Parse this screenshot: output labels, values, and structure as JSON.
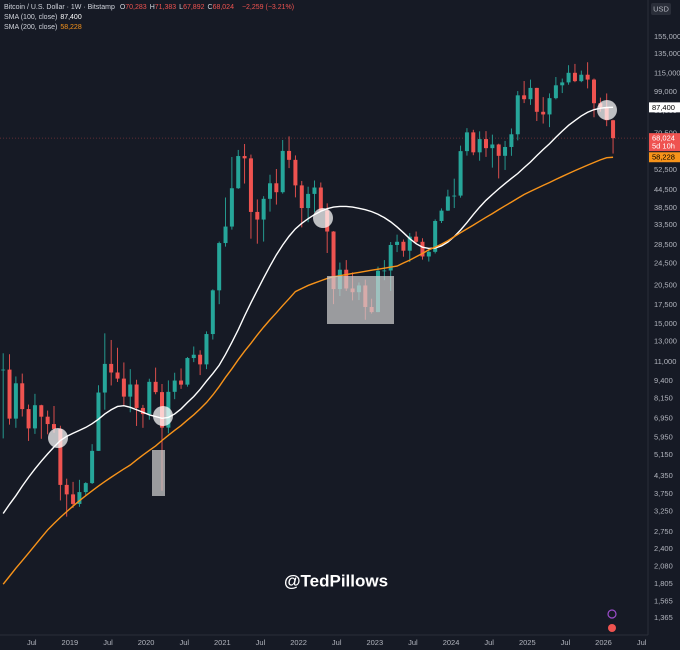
{
  "chart_data": {
    "type": "candlestick",
    "title": "Bitcoin / U.S. Dollar · 1W · Bitstamp",
    "ohlc_header": [
      {
        "key": "O",
        "value": "70,283"
      },
      {
        "key": "H",
        "value": "71,383"
      },
      {
        "key": "L",
        "value": "67,892"
      },
      {
        "key": "C",
        "value": "68,024"
      }
    ],
    "change": "−2,259 (−3.21%)",
    "countdown": "5d 10h",
    "currency": "USD",
    "watermark": "@TedPillows",
    "up_color": "#26a69a",
    "down_color": "#ef5350",
    "log_scale": true,
    "grid": false,
    "x": [
      "2018-02",
      "2018-03",
      "2018-04",
      "2018-05",
      "2018-06",
      "2018-07",
      "2018-08",
      "2018-09",
      "2018-10",
      "2018-11",
      "2018-12",
      "2019-01",
      "2019-02",
      "2019-03",
      "2019-04",
      "2019-05",
      "2019-06",
      "2019-07",
      "2019-08",
      "2019-09",
      "2019-10",
      "2019-11",
      "2019-12",
      "2020-01",
      "2020-02",
      "2020-03",
      "2020-04",
      "2020-05",
      "2020-06",
      "2020-07",
      "2020-08",
      "2020-09",
      "2020-10",
      "2020-11",
      "2020-12",
      "2021-01",
      "2021-02",
      "2021-03",
      "2021-04",
      "2021-05",
      "2021-06",
      "2021-07",
      "2021-08",
      "2021-09",
      "2021-10",
      "2021-11",
      "2021-12",
      "2022-01",
      "2022-02",
      "2022-03",
      "2022-04",
      "2022-05",
      "2022-06",
      "2022-07",
      "2022-08",
      "2022-09",
      "2022-10",
      "2022-11",
      "2022-12",
      "2023-01",
      "2023-02",
      "2023-03",
      "2023-04",
      "2023-05",
      "2023-06",
      "2023-07",
      "2023-08",
      "2023-09",
      "2023-10",
      "2023-11",
      "2023-12",
      "2024-01",
      "2024-02",
      "2024-03",
      "2024-04",
      "2024-05",
      "2024-06",
      "2024-07",
      "2024-08",
      "2024-09",
      "2024-10",
      "2024-11",
      "2024-12",
      "2025-01",
      "2025-02",
      "2025-03",
      "2025-04",
      "2025-05",
      "2025-06",
      "2025-07",
      "2025-08",
      "2025-09",
      "2025-10",
      "2025-11",
      "2025-12",
      "2026-01",
      "2026-02"
    ],
    "open": [
      10270,
      10330,
      6930,
      9240,
      7490,
      6400,
      7730,
      7040,
      6630,
      6370,
      4040,
      3740,
      3460,
      3810,
      4100,
      5330,
      8570,
      10820,
      10090,
      9600,
      8290,
      9150,
      7560,
      7190,
      9350,
      8600,
      6440,
      8620,
      9450,
      9140,
      11350,
      11660,
      10780,
      13800,
      19700,
      28950,
      33110,
      45240,
      58800,
      57700,
      37300,
      35050,
      41500,
      47100,
      43800,
      61300,
      57000,
      46300,
      38500,
      43200,
      45500,
      37700,
      31800,
      19900,
      23300,
      20000,
      19400,
      20500,
      17200,
      16500,
      23100,
      23150,
      28500,
      29250,
      27200,
      30500,
      29250,
      25950,
      26950,
      34650,
      37700,
      42300,
      42600,
      61200,
      71300,
      60600,
      67500,
      62700,
      64600,
      58900,
      63300,
      70200,
      96400,
      93400,
      102400,
      84300,
      82500,
      94200,
      104600,
      107100,
      115800,
      108200,
      114000,
      109600,
      90400,
      87500,
      78700
    ],
    "high": [
      11800,
      11700,
      9770,
      10000,
      7770,
      8480,
      7760,
      7400,
      7680,
      6540,
      4250,
      4140,
      4210,
      4130,
      5630,
      9090,
      13880,
      13150,
      12340,
      10950,
      10370,
      9510,
      7750,
      9590,
      10500,
      9190,
      9460,
      10070,
      10430,
      11450,
      12470,
      12090,
      14100,
      19860,
      29300,
      41950,
      58350,
      61800,
      64860,
      59500,
      41300,
      42400,
      50500,
      52900,
      67000,
      69000,
      59100,
      48000,
      45800,
      48200,
      47400,
      40000,
      31900,
      24700,
      25200,
      22800,
      21000,
      21500,
      18400,
      23900,
      25200,
      29200,
      31000,
      29800,
      31400,
      31800,
      30100,
      27500,
      35100,
      38400,
      44700,
      48900,
      64000,
      73800,
      72800,
      71900,
      72000,
      70000,
      65000,
      66500,
      73600,
      99800,
      108300,
      109600,
      102500,
      95000,
      97900,
      111900,
      110500,
      123200,
      124500,
      117900,
      126200,
      110600,
      94600,
      97900,
      79000
    ],
    "low": [
      5900,
      6600,
      6430,
      7050,
      5780,
      6120,
      5880,
      6100,
      6180,
      3560,
      3120,
      3350,
      3380,
      3700,
      4070,
      5330,
      7450,
      9080,
      9340,
      7750,
      7300,
      6530,
      6430,
      6870,
      8450,
      3850,
      6150,
      8120,
      8830,
      8990,
      10980,
      9880,
      10370,
      13200,
      17600,
      28130,
      32300,
      45000,
      47000,
      30000,
      28800,
      29300,
      37400,
      39600,
      43300,
      53300,
      42000,
      32900,
      34300,
      37200,
      37600,
      26700,
      17600,
      18800,
      19600,
      18150,
      18200,
      15500,
      16300,
      16500,
      21400,
      19600,
      26900,
      25900,
      24800,
      28900,
      25300,
      24900,
      26600,
      34100,
      37600,
      38500,
      41900,
      59000,
      59200,
      56600,
      58400,
      53500,
      49000,
      52500,
      58900,
      66800,
      90500,
      89200,
      78200,
      76600,
      74400,
      93300,
      98200,
      105100,
      107300,
      107300,
      102000,
      80600,
      84400,
      75000,
      60000
    ],
    "close": [
      10330,
      6930,
      9240,
      7490,
      6400,
      7730,
      7040,
      6630,
      6370,
      4040,
      3740,
      3460,
      3810,
      4100,
      5330,
      8570,
      10820,
      10090,
      9600,
      8290,
      9150,
      7560,
      7190,
      9350,
      8600,
      6440,
      8620,
      9450,
      9140,
      11350,
      11660,
      10780,
      13800,
      19700,
      28950,
      33110,
      45240,
      58800,
      57700,
      37300,
      35050,
      41500,
      47100,
      43800,
      61300,
      57000,
      46300,
      38500,
      43200,
      45500,
      37700,
      31800,
      19900,
      23300,
      20000,
      19400,
      20500,
      17200,
      16500,
      23100,
      23150,
      28500,
      29250,
      27200,
      30500,
      29250,
      25950,
      26950,
      34650,
      37700,
      42300,
      42600,
      61200,
      71300,
      60600,
      67500,
      62700,
      64600,
      58900,
      63300,
      70200,
      96400,
      93400,
      102400,
      84300,
      82500,
      94200,
      104600,
      107100,
      115800,
      108200,
      114000,
      109600,
      90400,
      87500,
      78700,
      68024
    ],
    "series": [
      {
        "name": "SMA (100, close)",
        "color": "#ffffff",
        "last_label": "87,400",
        "values": [
          3200,
          3450,
          3700,
          4000,
          4300,
          4600,
          4900,
          5200,
          5500,
          5800,
          6000,
          6150,
          6300,
          6450,
          6650,
          6900,
          7200,
          7450,
          7650,
          7700,
          7600,
          7450,
          7300,
          7150,
          7050,
          6950,
          7000,
          7200,
          7500,
          7900,
          8300,
          8800,
          9400,
          10000,
          10700,
          11700,
          12900,
          14300,
          16000,
          17800,
          19700,
          21800,
          24000,
          26300,
          28500,
          30600,
          32500,
          34000,
          35300,
          36500,
          37500,
          38300,
          38800,
          39000,
          39000,
          38800,
          38400,
          38000,
          37400,
          36600,
          35600,
          34400,
          33000,
          31500,
          30000,
          28800,
          28000,
          27700,
          27800,
          28300,
          29200,
          30500,
          32200,
          34200,
          36500,
          38800,
          41000,
          43000,
          45000,
          47000,
          49000,
          51000,
          53500,
          56000,
          59000,
          62000,
          65000,
          68500,
          72000,
          75500,
          78500,
          81500,
          84000,
          85800,
          86800,
          87300,
          87400
        ]
      },
      {
        "name": "SMA (200, close)",
        "color": "#f7931a",
        "last_label": "58,228",
        "values": [
          1800,
          1920,
          2050,
          2180,
          2320,
          2470,
          2630,
          2800,
          2950,
          3100,
          3250,
          3400,
          3550,
          3700,
          3850,
          4000,
          4150,
          4300,
          4450,
          4600,
          4750,
          4950,
          5150,
          5350,
          5550,
          5800,
          6050,
          6300,
          6550,
          6850,
          7150,
          7500,
          7900,
          8400,
          9000,
          9700,
          10400,
          11200,
          12000,
          12800,
          13700,
          14600,
          15500,
          16400,
          17400,
          18400,
          19500,
          20000,
          20500,
          20900,
          21300,
          21700,
          22000,
          22200,
          22400,
          22600,
          22800,
          23000,
          23200,
          23400,
          23600,
          23800,
          24000,
          24600,
          25200,
          25900,
          26600,
          27400,
          28000,
          28700,
          29500,
          30500,
          31500,
          32500,
          33500,
          34600,
          35700,
          36800,
          38000,
          39200,
          40400,
          41700,
          43000,
          44100,
          45200,
          46300,
          47400,
          48600,
          49800,
          51000,
          52200,
          53400,
          54600,
          55800,
          57000,
          58000,
          58228
        ]
      }
    ],
    "xlim": [
      "2018-02",
      "2026-08"
    ],
    "xticks": [
      {
        "value": "2018-07",
        "label": "Jul"
      },
      {
        "value": "2019-01",
        "label": "2019"
      },
      {
        "value": "2019-07",
        "label": "Jul"
      },
      {
        "value": "2020-01",
        "label": "2020"
      },
      {
        "value": "2020-07",
        "label": "Jul"
      },
      {
        "value": "2021-01",
        "label": "2021"
      },
      {
        "value": "2021-07",
        "label": "Jul"
      },
      {
        "value": "2022-01",
        "label": "2022"
      },
      {
        "value": "2022-07",
        "label": "Jul"
      },
      {
        "value": "2023-01",
        "label": "2023"
      },
      {
        "value": "2023-07",
        "label": "Jul"
      },
      {
        "value": "2024-01",
        "label": "2024"
      },
      {
        "value": "2024-07",
        "label": "Jul"
      },
      {
        "value": "2025-01",
        "label": "2025"
      },
      {
        "value": "2025-07",
        "label": "Jul"
      },
      {
        "value": "2026-01",
        "label": "2026"
      },
      {
        "value": "2026-07",
        "label": "Jul"
      }
    ],
    "ylim": [
      1190,
      209500
    ],
    "yticks": [
      {
        "value": 155000,
        "label": "155,000"
      },
      {
        "value": 135000,
        "label": "135,000"
      },
      {
        "value": 115000,
        "label": "115,000"
      },
      {
        "value": 99000,
        "label": "99,000"
      },
      {
        "value": 85000,
        "label": "85,000"
      },
      {
        "value": 70500,
        "label": "70,500"
      },
      {
        "value": 52500,
        "label": "52,500"
      },
      {
        "value": 44500,
        "label": "44,500"
      },
      {
        "value": 38500,
        "label": "38,500"
      },
      {
        "value": 33500,
        "label": "33,500"
      },
      {
        "value": 28500,
        "label": "28,500"
      },
      {
        "value": 24500,
        "label": "24,500"
      },
      {
        "value": 20500,
        "label": "20,500"
      },
      {
        "value": 17500,
        "label": "17,500"
      },
      {
        "value": 15000,
        "label": "15,000"
      },
      {
        "value": 13000,
        "label": "13,000"
      },
      {
        "value": 11000,
        "label": "11,000"
      },
      {
        "value": 9400,
        "label": "9,400"
      },
      {
        "value": 8150,
        "label": "8,150"
      },
      {
        "value": 6950,
        "label": "6,950"
      },
      {
        "value": 5950,
        "label": "5,950"
      },
      {
        "value": 5150,
        "label": "5,150"
      },
      {
        "value": 4350,
        "label": "4,350"
      },
      {
        "value": 3750,
        "label": "3,750"
      },
      {
        "value": 3250,
        "label": "3,250"
      },
      {
        "value": 2750,
        "label": "2,750"
      },
      {
        "value": 2400,
        "label": "2,400"
      },
      {
        "value": 2080,
        "label": "2,080"
      },
      {
        "value": 1805,
        "label": "1,805"
      },
      {
        "value": 1565,
        "label": "1,565"
      },
      {
        "value": 1365,
        "label": "1,365"
      }
    ]
  }
}
